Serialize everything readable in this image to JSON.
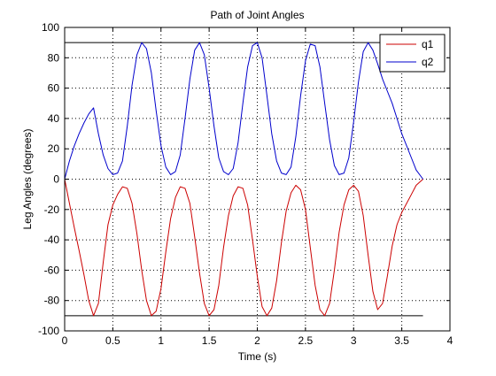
{
  "chart_data": {
    "type": "line",
    "title": "Path of Joint Angles",
    "xlabel": "Time (s)",
    "ylabel": "Leg Angles (degrees)",
    "xlim": [
      0,
      4
    ],
    "ylim": [
      -100,
      100
    ],
    "xticks": [
      "0",
      "0.5",
      "1",
      "1.5",
      "2",
      "2.5",
      "3",
      "3.5",
      "4"
    ],
    "yticks": [
      "100",
      "80",
      "60",
      "40",
      "20",
      "0",
      "-20",
      "-40",
      "-60",
      "-80",
      "-100"
    ],
    "grid": true,
    "legend_position": "top-right",
    "reference_lines": [
      {
        "y": 90,
        "x_range": [
          0,
          3.72
        ],
        "color": "#000000"
      },
      {
        "y": -90,
        "x_range": [
          0,
          3.72
        ],
        "color": "#000000"
      }
    ],
    "series": [
      {
        "name": "q1",
        "color": "#cc0000",
        "x": [
          0,
          0.05,
          0.1,
          0.15,
          0.2,
          0.25,
          0.3,
          0.35,
          0.4,
          0.45,
          0.5,
          0.55,
          0.6,
          0.65,
          0.7,
          0.75,
          0.8,
          0.85,
          0.9,
          0.95,
          1.0,
          1.05,
          1.1,
          1.15,
          1.2,
          1.25,
          1.3,
          1.35,
          1.4,
          1.45,
          1.5,
          1.55,
          1.6,
          1.65,
          1.7,
          1.75,
          1.8,
          1.85,
          1.9,
          1.95,
          2.0,
          2.05,
          2.1,
          2.15,
          2.2,
          2.25,
          2.3,
          2.35,
          2.4,
          2.45,
          2.5,
          2.55,
          2.6,
          2.65,
          2.7,
          2.75,
          2.8,
          2.85,
          2.9,
          2.95,
          3.0,
          3.05,
          3.1,
          3.15,
          3.2,
          3.25,
          3.3,
          3.35,
          3.4,
          3.45,
          3.5,
          3.55,
          3.6,
          3.65,
          3.72
        ],
        "y": [
          0,
          -16,
          -32,
          -47,
          -63,
          -80,
          -90,
          -82,
          -55,
          -30,
          -17,
          -10,
          -5,
          -6,
          -16,
          -36,
          -60,
          -80,
          -90,
          -87,
          -72,
          -48,
          -26,
          -12,
          -5,
          -6,
          -16,
          -38,
          -62,
          -82,
          -90,
          -86,
          -70,
          -45,
          -24,
          -11,
          -5,
          -6,
          -17,
          -40,
          -64,
          -84,
          -90,
          -85,
          -67,
          -42,
          -21,
          -9,
          -4,
          -7,
          -20,
          -45,
          -70,
          -86,
          -90,
          -82,
          -60,
          -35,
          -17,
          -7,
          -4,
          -8,
          -24,
          -50,
          -74,
          -86,
          -82,
          -64,
          -44,
          -30,
          -22,
          -16,
          -10,
          -4,
          0
        ]
      },
      {
        "name": "q2",
        "color": "#0000cc",
        "x": [
          0,
          0.05,
          0.1,
          0.15,
          0.2,
          0.25,
          0.3,
          0.35,
          0.4,
          0.45,
          0.5,
          0.55,
          0.6,
          0.65,
          0.7,
          0.75,
          0.8,
          0.85,
          0.9,
          0.95,
          1.0,
          1.05,
          1.1,
          1.15,
          1.2,
          1.25,
          1.3,
          1.35,
          1.4,
          1.45,
          1.5,
          1.55,
          1.6,
          1.65,
          1.7,
          1.75,
          1.8,
          1.85,
          1.9,
          1.95,
          2.0,
          2.05,
          2.1,
          2.15,
          2.2,
          2.25,
          2.3,
          2.35,
          2.4,
          2.45,
          2.5,
          2.55,
          2.6,
          2.65,
          2.7,
          2.75,
          2.8,
          2.85,
          2.9,
          2.95,
          3.0,
          3.05,
          3.1,
          3.15,
          3.2,
          3.25,
          3.3,
          3.35,
          3.4,
          3.45,
          3.5,
          3.55,
          3.6,
          3.65,
          3.72
        ],
        "y": [
          0,
          12,
          22,
          30,
          37,
          43,
          47,
          30,
          16,
          7,
          3,
          4,
          12,
          35,
          62,
          82,
          90,
          86,
          70,
          45,
          22,
          8,
          3,
          5,
          16,
          40,
          66,
          85,
          90,
          82,
          60,
          35,
          14,
          5,
          3,
          7,
          24,
          50,
          74,
          88,
          90,
          80,
          55,
          30,
          12,
          4,
          3,
          8,
          28,
          55,
          78,
          89,
          88,
          74,
          50,
          26,
          9,
          3,
          4,
          14,
          38,
          64,
          84,
          90,
          85,
          76,
          66,
          58,
          50,
          40,
          30,
          22,
          14,
          6,
          0
        ]
      }
    ]
  }
}
